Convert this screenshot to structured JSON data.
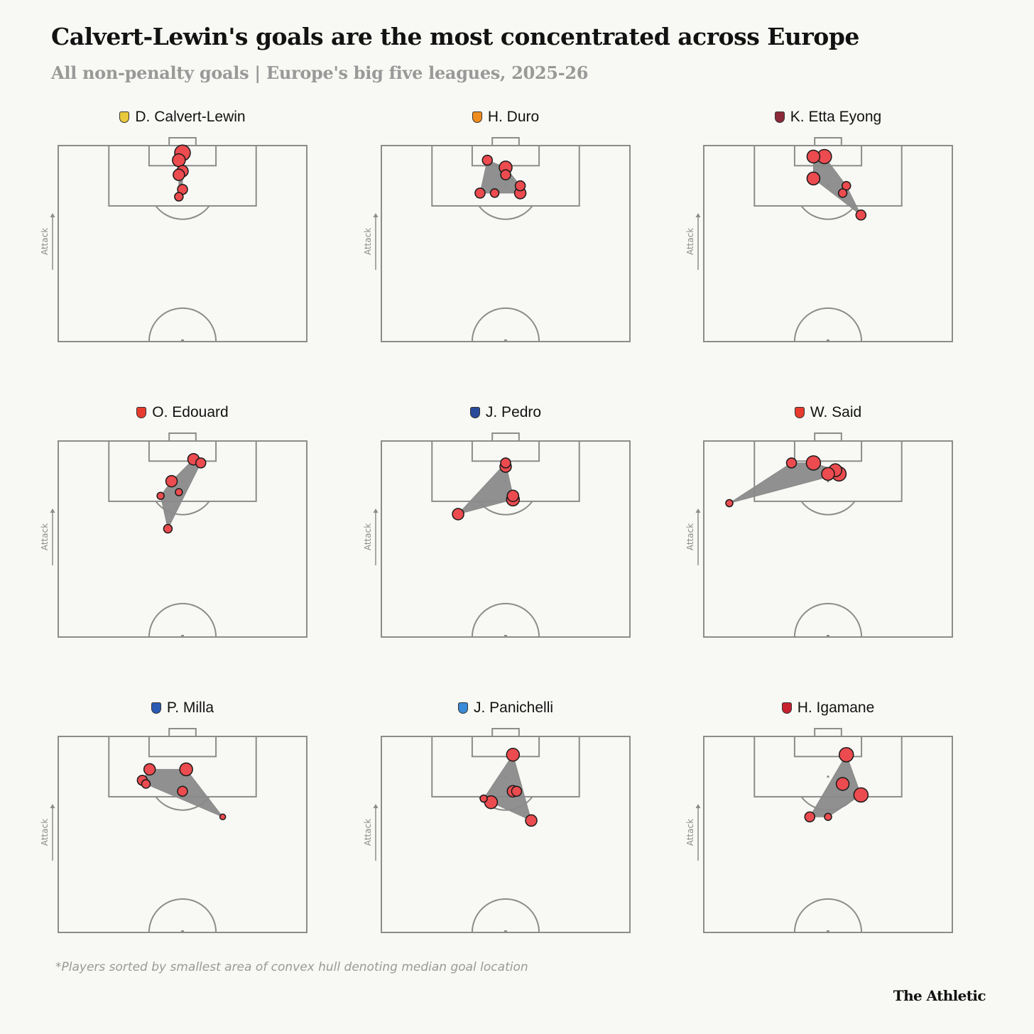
{
  "header": {
    "title": "Calvert-Lewin's goals are the most concentrated across Europe",
    "subtitle": "All non-penalty goals | Europe's big five leagues, 2025-26"
  },
  "pitch_label": "Attack",
  "footnote": "*Players sorted by smallest area of convex hull denoting median goal location",
  "brand": "The Athletic",
  "colors": {
    "goal_fill": "#ec4b4f",
    "goal_stroke": "#1a1a1a",
    "hull_fill": "#8a8a8a",
    "pitch_line": "#8c8c8c",
    "background": "#f8f8f4"
  },
  "chart_data": {
    "type": "scatter",
    "panels": [
      {
        "player": "D. Calvert-Lewin",
        "crest": {
          "icon": "leeds-crest-icon",
          "color": "#e8c83c"
        },
        "goals": [
          [
            0,
            2,
            11
          ],
          [
            -1,
            4,
            9
          ],
          [
            0,
            7,
            8
          ],
          [
            -1,
            8,
            8
          ],
          [
            0,
            12,
            7
          ],
          [
            -1,
            14,
            6
          ]
        ]
      },
      {
        "player": "H. Duro",
        "crest": {
          "icon": "valencia-crest-icon",
          "color": "#f08c1e"
        },
        "goals": [
          [
            -5,
            4,
            7
          ],
          [
            0,
            6,
            9
          ],
          [
            0,
            8,
            7
          ],
          [
            4,
            11,
            7
          ],
          [
            -3,
            13,
            6
          ],
          [
            -7,
            13,
            7
          ],
          [
            4,
            13,
            8
          ]
        ]
      },
      {
        "player": "K. Etta Eyong",
        "crest": {
          "icon": "levante-crest-icon",
          "color": "#8c2a3a"
        },
        "goals": [
          [
            -4,
            3,
            9
          ],
          [
            -1,
            3,
            10
          ],
          [
            -4,
            9,
            9
          ],
          [
            5,
            11,
            6
          ],
          [
            4,
            13,
            6
          ],
          [
            9,
            19,
            7
          ]
        ]
      },
      {
        "player": "O. Edouard",
        "crest": {
          "icon": "lens-crest-icon",
          "color": "#e63b2e"
        },
        "goals": [
          [
            3,
            5,
            8
          ],
          [
            5,
            6,
            7
          ],
          [
            -3,
            11,
            8
          ],
          [
            -1,
            14,
            5
          ],
          [
            -6,
            15,
            5
          ],
          [
            -4,
            24,
            6
          ]
        ]
      },
      {
        "player": "J. Pedro",
        "crest": {
          "icon": "chelsea-crest-icon",
          "color": "#2a4a9a"
        },
        "goals": [
          [
            0,
            6,
            7
          ],
          [
            0,
            7,
            8
          ],
          [
            2,
            15,
            8
          ],
          [
            2,
            16,
            9
          ],
          [
            -13,
            20,
            8
          ]
        ]
      },
      {
        "player": "W. Said",
        "crest": {
          "icon": "lens-crest-icon",
          "color": "#e63b2e"
        },
        "goals": [
          [
            -10,
            6,
            7
          ],
          [
            -4,
            6,
            10
          ],
          [
            2,
            8,
            9
          ],
          [
            3,
            9,
            10
          ],
          [
            0,
            9,
            9
          ],
          [
            -27,
            17,
            5
          ]
        ]
      },
      {
        "player": "P. Milla",
        "crest": {
          "icon": "espanyol-crest-icon",
          "color": "#2a5ab4"
        },
        "goals": [
          [
            1,
            9,
            9
          ],
          [
            -9,
            9,
            8
          ],
          [
            -11,
            12,
            7
          ],
          [
            -10,
            13,
            6
          ],
          [
            0,
            15,
            7
          ],
          [
            11,
            22,
            4
          ]
        ]
      },
      {
        "player": "J. Panichelli",
        "crest": {
          "icon": "strasbourg-crest-icon",
          "color": "#3a8ad8"
        },
        "goals": [
          [
            2,
            5,
            9
          ],
          [
            2,
            15,
            8
          ],
          [
            3,
            15,
            7
          ],
          [
            -6,
            17,
            5
          ],
          [
            -4,
            18,
            9
          ],
          [
            7,
            23,
            8
          ]
        ]
      },
      {
        "player": "H. Igamane",
        "crest": {
          "icon": "lille-crest-icon",
          "color": "#c8202e"
        },
        "goals": [
          [
            5,
            5,
            10
          ],
          [
            4,
            13,
            9
          ],
          [
            9,
            16,
            10
          ],
          [
            -5,
            22,
            7
          ],
          [
            0,
            22,
            5
          ]
        ]
      }
    ]
  }
}
